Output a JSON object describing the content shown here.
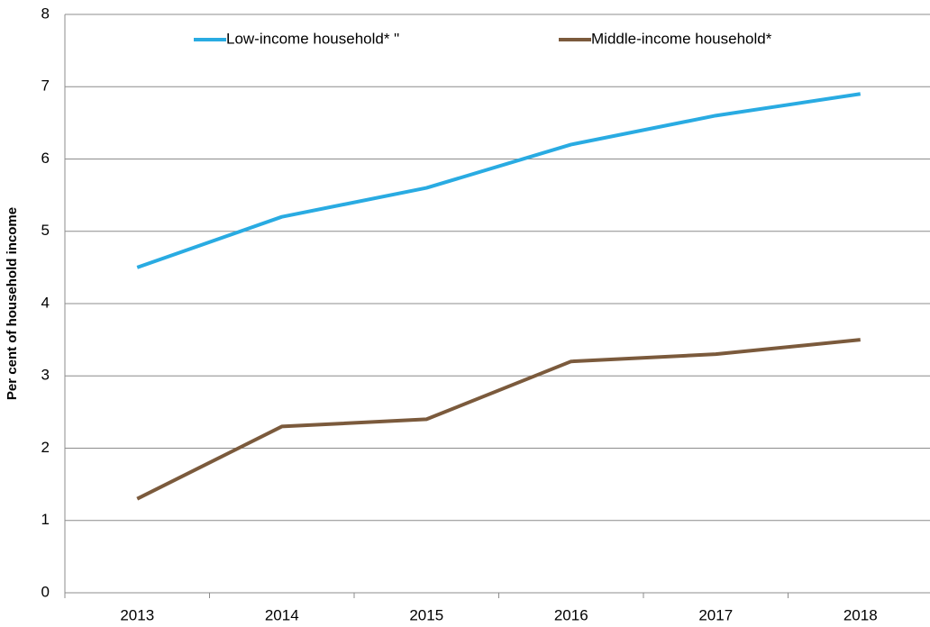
{
  "chart_data": {
    "type": "line",
    "y_label": "Per cent of household income",
    "categories": [
      "2013",
      "2014",
      "2015",
      "2016",
      "2017",
      "2018"
    ],
    "series": [
      {
        "name": "Low-income household* \"",
        "color": "#29abe2",
        "values": [
          4.5,
          5.2,
          5.6,
          6.2,
          6.6,
          6.9
        ]
      },
      {
        "name": "Middle-income household*",
        "color": "#7b5a3c",
        "values": [
          1.3,
          2.3,
          2.4,
          3.2,
          3.3,
          3.5
        ]
      }
    ],
    "ylim": [
      0,
      8
    ],
    "yticks": [
      0,
      1,
      2,
      3,
      4,
      5,
      6,
      7,
      8
    ],
    "grid": true,
    "legend": "top"
  }
}
